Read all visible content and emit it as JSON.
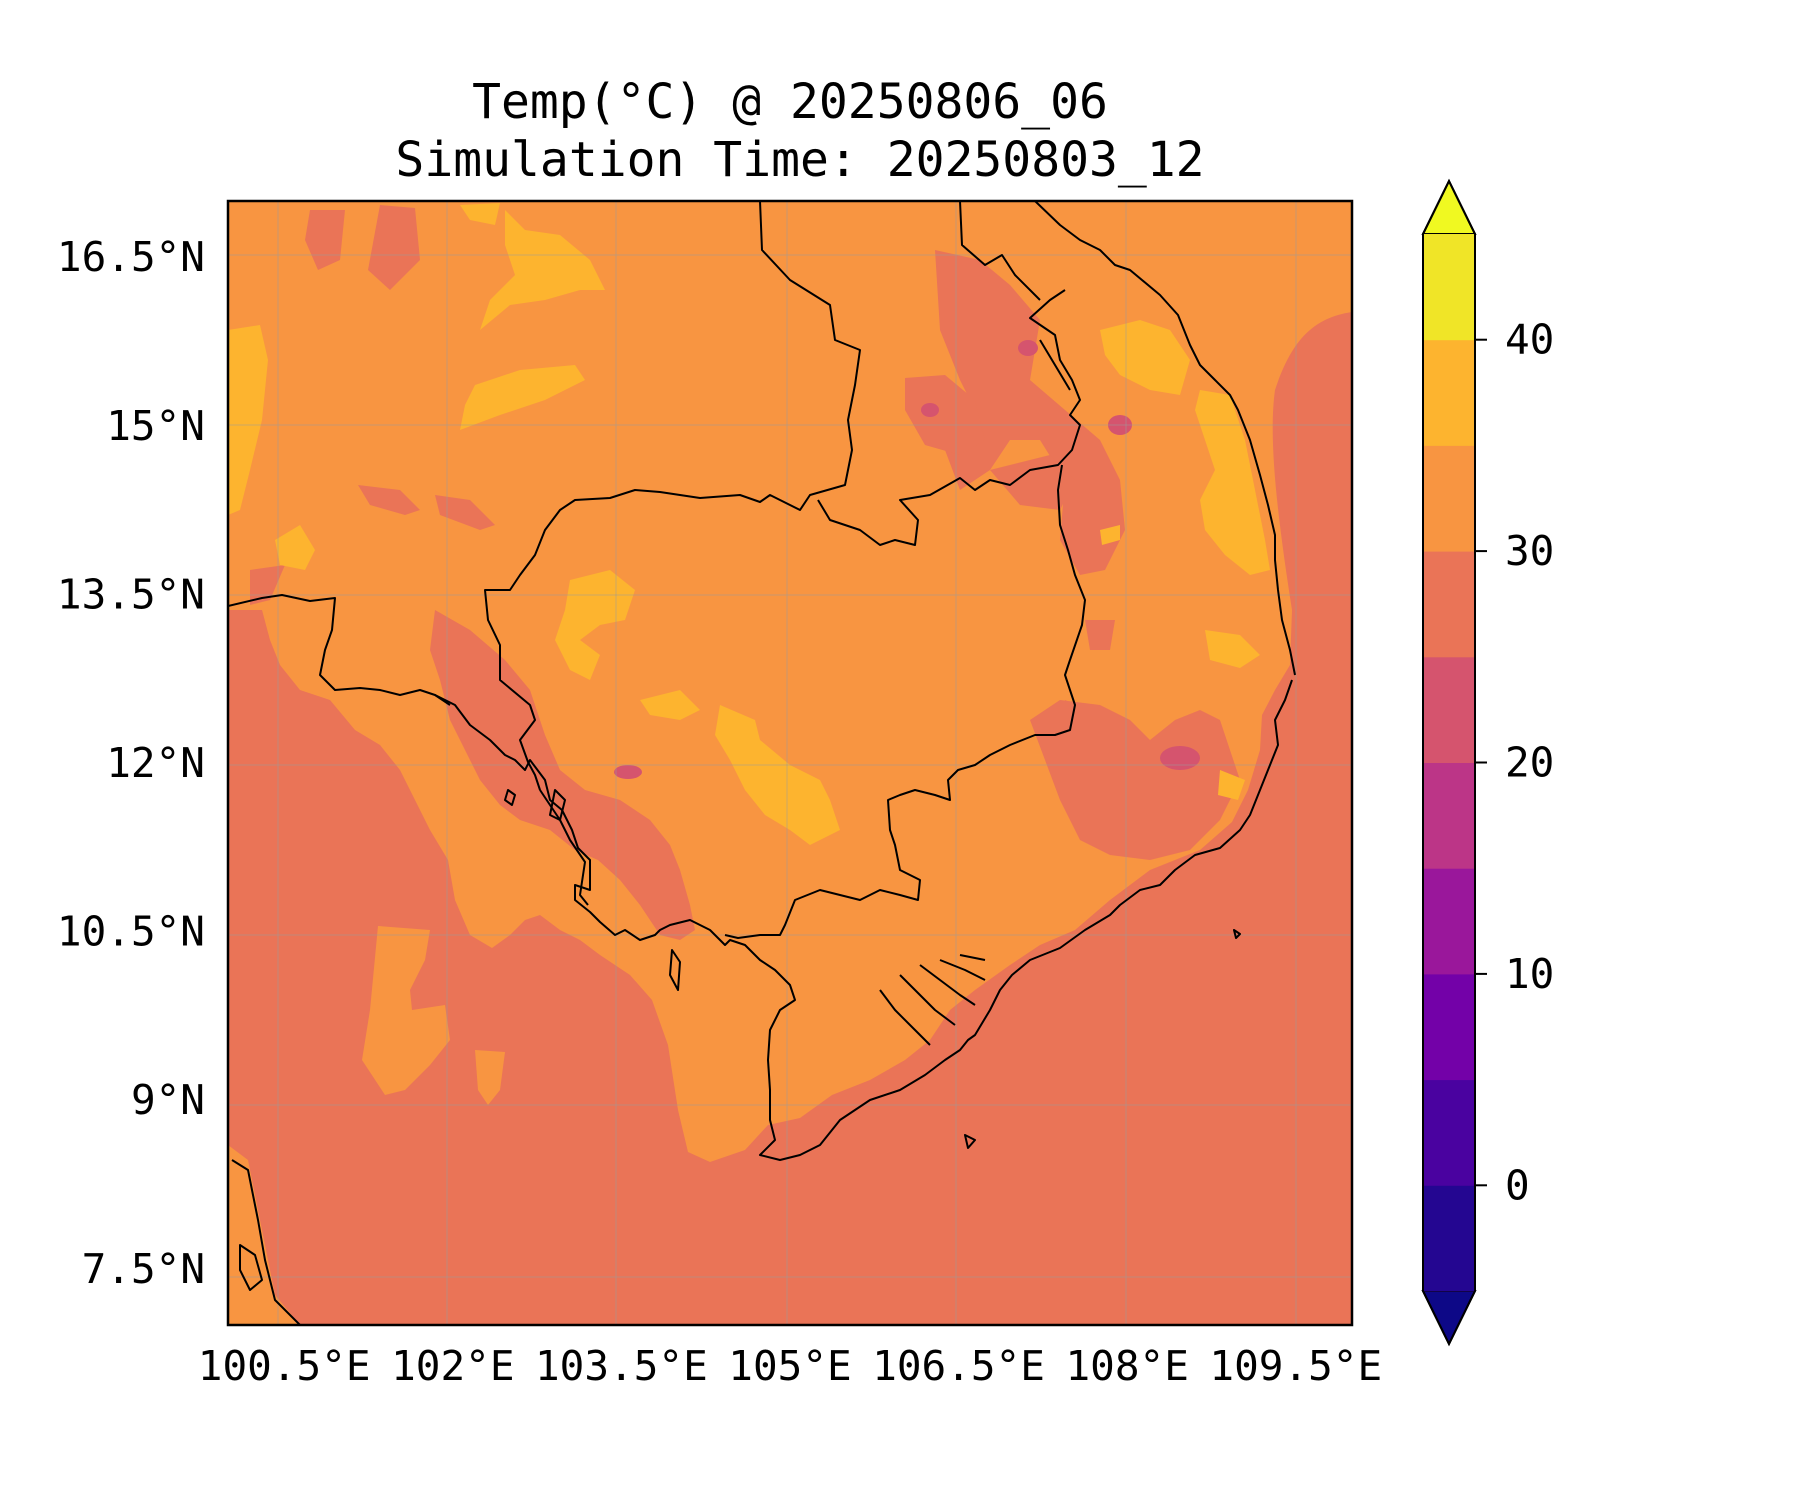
{
  "title": {
    "line1": "Temp(°C) @ 20250806_06",
    "line2": "Simulation Time: 20250803_12"
  },
  "map": {
    "projection": "PlateCarree",
    "lon_range": [
      100.0,
      110.0
    ],
    "lat_range": [
      7.0,
      17.0
    ],
    "x_ticks": [
      "100.5°E",
      "102°E",
      "103.5°E",
      "105°E",
      "106.5°E",
      "108°E",
      "109.5°E"
    ],
    "y_ticks": [
      "16.5°N",
      "15°N",
      "13.5°N",
      "12°N",
      "10.5°N",
      "9°N",
      "7.5°N"
    ],
    "gridlines": true,
    "coastlines": true,
    "borders": true
  },
  "field": {
    "variable": "Temp",
    "unit": "°C",
    "background_band": "25-30",
    "land_band": "30-35",
    "warm_band": "35-40",
    "cool_band": "20-25"
  },
  "colorbar": {
    "levels": [
      -5,
      0,
      5,
      10,
      15,
      20,
      25,
      30,
      35,
      40,
      45
    ],
    "tick_labels": [
      "0",
      "10",
      "20",
      "30",
      "40"
    ],
    "tick_values": [
      0,
      10,
      20,
      30,
      40
    ],
    "extend": "both",
    "under_color": "#0d0887",
    "over_color": "#f0f921",
    "colors": [
      "#240691",
      "#4a02a0",
      "#7301a8",
      "#9a179b",
      "#bc3587",
      "#d5546e",
      "#ea7457",
      "#f89541",
      "#fdb42f",
      "#f0e527"
    ],
    "colormap": "plasma"
  }
}
